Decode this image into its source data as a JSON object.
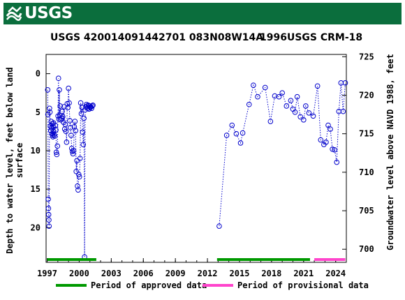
{
  "banner": {
    "logo_text": "USGS",
    "color": "#0b6e3d"
  },
  "chart_data": {
    "type": "scatter",
    "title_left": "USGS 420014091442701 083N08W14A",
    "title_right": "1996USGS CRM-18",
    "ylabel_left_line1": "Depth to water level, feet below land",
    "ylabel_left_line2": "surface",
    "ylabel_right": "Groundwater level above NAVD 1988, feet",
    "x_ticks": [
      "1997",
      "2000",
      "2003",
      "2006",
      "2009",
      "2012",
      "2015",
      "2018",
      "2021",
      "2024"
    ],
    "x_tick_values": [
      1997,
      2000,
      2003,
      2006,
      2009,
      2012,
      2015,
      2018,
      2021,
      2024
    ],
    "y_left_ticks": [
      "0",
      "5",
      "10",
      "15",
      "20"
    ],
    "y_left_values": [
      0,
      5,
      10,
      15,
      20
    ],
    "y_right_ticks": [
      "725",
      "720",
      "715",
      "710",
      "705",
      "700"
    ],
    "y_right_values": [
      725,
      720,
      715,
      710,
      705,
      700
    ],
    "xlim": [
      1996.9,
      2025.0
    ],
    "ylim_left": [
      -2.5,
      24.5
    ],
    "datum_offset": 722.8,
    "marker_color": "#0000cc",
    "grid": false,
    "series": [
      {
        "x": [
          1997.05,
          1997.07,
          1997.1,
          1997.12,
          1997.14,
          1997.16,
          1997.18,
          1997.22,
          1997.26,
          1997.3,
          1997.34,
          1997.38,
          1997.42,
          1997.46,
          1997.5,
          1997.52,
          1997.54,
          1997.56,
          1997.58,
          1997.6,
          1997.64,
          1997.7,
          1997.76,
          1997.82,
          1997.86,
          1997.9,
          1997.96,
          1998.02,
          1998.06,
          1998.1,
          1998.14,
          1998.18,
          1998.22,
          1998.28,
          1998.34,
          1998.4,
          1998.46,
          1998.52,
          1998.58,
          1998.64,
          1998.7,
          1998.76,
          1998.82,
          1998.88,
          1998.94,
          1999.0,
          1999.06,
          1999.12,
          1999.18,
          1999.24,
          1999.3,
          1999.36,
          1999.42,
          1999.48,
          1999.54,
          1999.6,
          1999.66,
          1999.72,
          1999.78,
          1999.84,
          1999.9,
          1999.96,
          2000.02,
          2000.08,
          2000.14,
          2000.2,
          2000.26,
          2000.32,
          2000.38,
          2000.44,
          2000.5,
          2000.56,
          2000.62,
          2000.68,
          2000.74,
          2000.8,
          2000.86,
          2000.92,
          2000.98,
          2001.04,
          2001.1,
          2001.16,
          2001.22,
          2001.28
        ],
        "y": [
          2.1,
          5.3,
          16.3,
          17.5,
          18.3,
          19.0,
          19.8,
          4.5,
          5.0,
          6.8,
          7.4,
          6.2,
          7.0,
          7.8,
          6.5,
          8.0,
          8.2,
          6.9,
          7.5,
          6.4,
          7.9,
          8.1,
          6.7,
          7.3,
          10.2,
          10.5,
          9.4,
          5.5,
          0.6,
          5.9,
          2.1,
          5.4,
          4.2,
          6.0,
          5.8,
          4.9,
          5.6,
          6.3,
          4.3,
          7.2,
          6.6,
          7.5,
          8.9,
          3.9,
          4.4,
          1.9,
          3.8,
          6.1,
          7.0,
          8.0,
          9.7,
          10.1,
          10.4,
          10.0,
          6.9,
          6.2,
          7.4,
          12.7,
          11.3,
          14.6,
          15.1,
          13.1,
          13.4,
          11.0,
          3.8,
          5.2,
          4.4,
          7.6,
          9.2,
          5.8,
          23.8,
          4.7,
          4.3,
          4.0,
          4.2,
          4.5,
          4.1,
          4.6,
          4.2,
          4.4,
          4.3,
          4.5,
          4.2,
          4.1
        ]
      },
      {
        "x": [
          2013.1,
          2013.8,
          2014.3,
          2014.7,
          2015.1,
          2015.3,
          2015.9,
          2016.3,
          2016.7,
          2017.4,
          2017.9,
          2018.3,
          2018.7,
          2019.0,
          2019.4,
          2019.8,
          2020.0,
          2020.2,
          2020.4,
          2020.7,
          2021.0,
          2021.2,
          2021.5,
          2021.9,
          2022.3,
          2022.6,
          2022.9,
          2023.1,
          2023.3,
          2023.5,
          2023.7,
          2023.9,
          2024.1,
          2024.3,
          2024.5,
          2024.7,
          2024.9
        ],
        "y": [
          19.8,
          8.0,
          6.7,
          7.8,
          9.0,
          7.7,
          4.0,
          1.5,
          3.0,
          1.8,
          6.2,
          2.9,
          3.0,
          2.5,
          4.2,
          3.5,
          4.6,
          5.0,
          3.0,
          5.6,
          6.0,
          4.2,
          5.1,
          5.5,
          1.6,
          8.6,
          9.2,
          8.9,
          6.7,
          7.2,
          9.8,
          9.9,
          11.5,
          4.9,
          1.2,
          4.9,
          1.2
        ]
      }
    ],
    "approved_periods": [
      [
        1997.0,
        2001.6
      ],
      [
        2012.9,
        2021.6
      ]
    ],
    "provisional_periods": [
      [
        2022.0,
        2024.9
      ]
    ],
    "approved_color": "#009900",
    "provisional_color": "#ff44cc",
    "legend": {
      "approved_label": "Period of approved data",
      "provisional_label": "Period of provisional data",
      "placement": "bottom"
    }
  }
}
